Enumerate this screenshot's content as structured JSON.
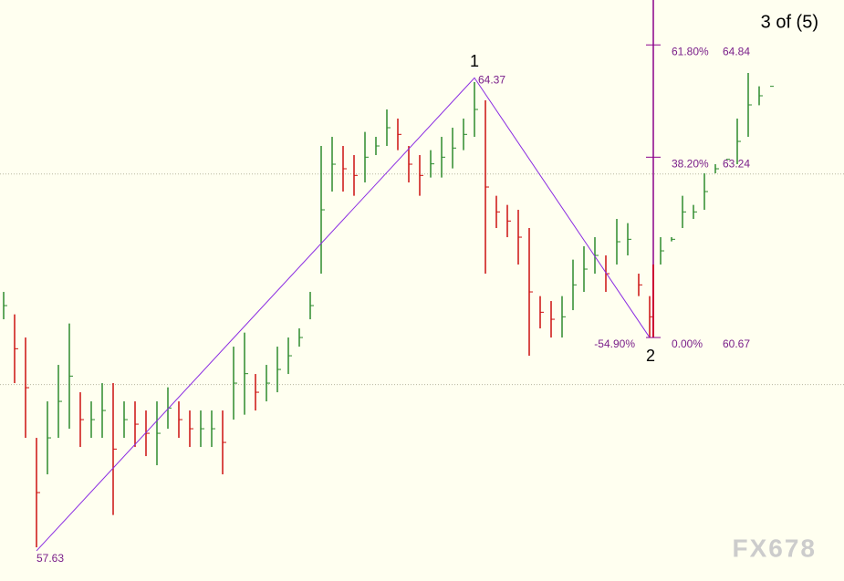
{
  "chart_data": {
    "type": "ohlc",
    "title": "3 of (5)",
    "watermark": "FX678",
    "up_color": "#2e8b2e",
    "down_color": "#cc1111",
    "line_color": "#8a2be2",
    "ylim": [
      57.2,
      65.48
    ],
    "hlines": [
      60,
      63
    ],
    "high": [
      61.32,
      61.0,
      60.67,
      59.24,
      59.76,
      60.28,
      60.87,
      59.89,
      59.76,
      60.02,
      60.02,
      59.76,
      59.76,
      59.63,
      59.76,
      59.96,
      59.76,
      59.63,
      59.63,
      59.63,
      59.63,
      60.54,
      60.74,
      60.15,
      60.28,
      60.54,
      60.67,
      60.8,
      61.32,
      63.4,
      63.53,
      63.4,
      63.27,
      63.6,
      63.53,
      63.92,
      63.79,
      63.4,
      63.27,
      63.34,
      63.53,
      63.66,
      63.79,
      64.31,
      64.05,
      62.69,
      62.56,
      62.49,
      62.23,
      61.26,
      61.19,
      61.26,
      61.78,
      61.97,
      62.1,
      61.84,
      62.36,
      62.3,
      61.58,
      61.26,
      62.1,
      62.1,
      62.69,
      62.56,
      63.01,
      63.14,
      63.21,
      63.79,
      64.44,
      64.25,
      64.25
    ],
    "low": [
      60.93,
      60.02,
      59.24,
      57.68,
      58.72,
      59.24,
      59.37,
      59.11,
      59.24,
      59.24,
      58.14,
      59.24,
      59.11,
      58.98,
      58.85,
      59.37,
      59.24,
      59.11,
      59.11,
      59.11,
      58.72,
      59.5,
      59.57,
      59.63,
      59.76,
      59.89,
      60.15,
      60.54,
      60.93,
      61.58,
      62.75,
      62.75,
      62.69,
      62.88,
      63.27,
      63.4,
      63.34,
      62.88,
      62.69,
      62.95,
      62.95,
      63.08,
      63.34,
      63.53,
      61.58,
      62.23,
      62.1,
      61.71,
      60.41,
      60.8,
      60.67,
      60.67,
      61.06,
      61.32,
      61.58,
      61.32,
      61.71,
      61.84,
      61.26,
      60.67,
      61.71,
      62.04,
      62.23,
      62.36,
      62.49,
      63.01,
      63.21,
      63.14,
      63.53,
      63.98,
      64.25
    ],
    "waves": [
      {
        "label": "1",
        "bar": 43,
        "value": 64.37
      },
      {
        "label": "2",
        "bar": 59,
        "value": 60.67
      }
    ],
    "wave_path": [
      {
        "bar": 3,
        "value": 57.63
      },
      {
        "bar": 43,
        "value": 64.37
      },
      {
        "bar": 59,
        "value": 60.67
      }
    ],
    "extension_label": "-54.90%",
    "fib_bar": 59,
    "fib_levels": [
      {
        "label": "61.80%",
        "value": 64.84
      },
      {
        "label": "38.20%",
        "value": 63.24
      },
      {
        "label": "0.00%",
        "value": 60.67
      }
    ]
  }
}
